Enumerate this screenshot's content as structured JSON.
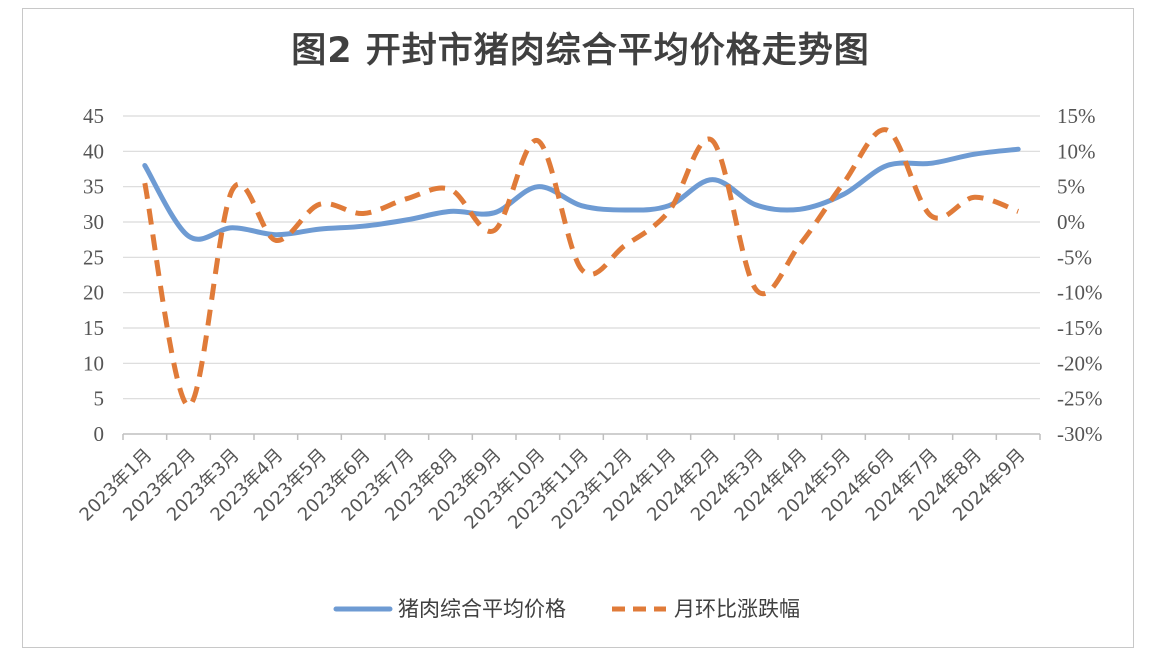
{
  "title": "图2 开封市猪肉综合平均价格走势图",
  "chart_data": {
    "type": "line",
    "categories": [
      "2023年1月",
      "2023年2月",
      "2023年3月",
      "2023年4月",
      "2023年5月",
      "2023年6月",
      "2023年7月",
      "2023年8月",
      "2023年9月",
      "2023年10月",
      "2023年11月",
      "2023年12月",
      "2024年1月",
      "2024年2月",
      "2024年3月",
      "2024年4月",
      "2024年5月",
      "2024年6月",
      "2024年7月",
      "2024年8月",
      "2024年9月"
    ],
    "series": [
      {
        "name": "猪肉综合平均价格",
        "axis": "left",
        "color": "#6E9BD3",
        "style": "solid",
        "values": [
          38.0,
          28.0,
          29.2,
          28.2,
          29.0,
          29.4,
          30.3,
          31.5,
          31.3,
          35.0,
          32.3,
          31.7,
          32.3,
          36.0,
          32.4,
          31.8,
          33.9,
          38.0,
          38.3,
          39.6,
          40.3
        ]
      },
      {
        "name": "月环比涨跌幅",
        "axis": "right",
        "color": "#E07B39",
        "style": "dashed",
        "values": [
          5.5,
          -26.0,
          4.5,
          -2.6,
          2.5,
          1.2,
          3.3,
          4.6,
          -1.2,
          11.5,
          -6.7,
          -3.3,
          1.5,
          11.5,
          -9.6,
          -3.2,
          5.5,
          13.0,
          0.9,
          3.5,
          1.5
        ]
      }
    ],
    "y_left": {
      "ticks": [
        "45",
        "40",
        "35",
        "30",
        "25",
        "20",
        "15",
        "10",
        "5",
        "0"
      ],
      "ylim": [
        0,
        45
      ]
    },
    "y_right": {
      "ticks": [
        "15%",
        "10%",
        "5%",
        "0%",
        "-5%",
        "-10%",
        "-15%",
        "-20%",
        "-25%",
        "-30%"
      ],
      "ylim": [
        -30,
        15
      ]
    },
    "grid": true,
    "legend_position": "bottom"
  },
  "legend": {
    "series1": "猪肉综合平均价格",
    "series2": "月环比涨跌幅"
  }
}
